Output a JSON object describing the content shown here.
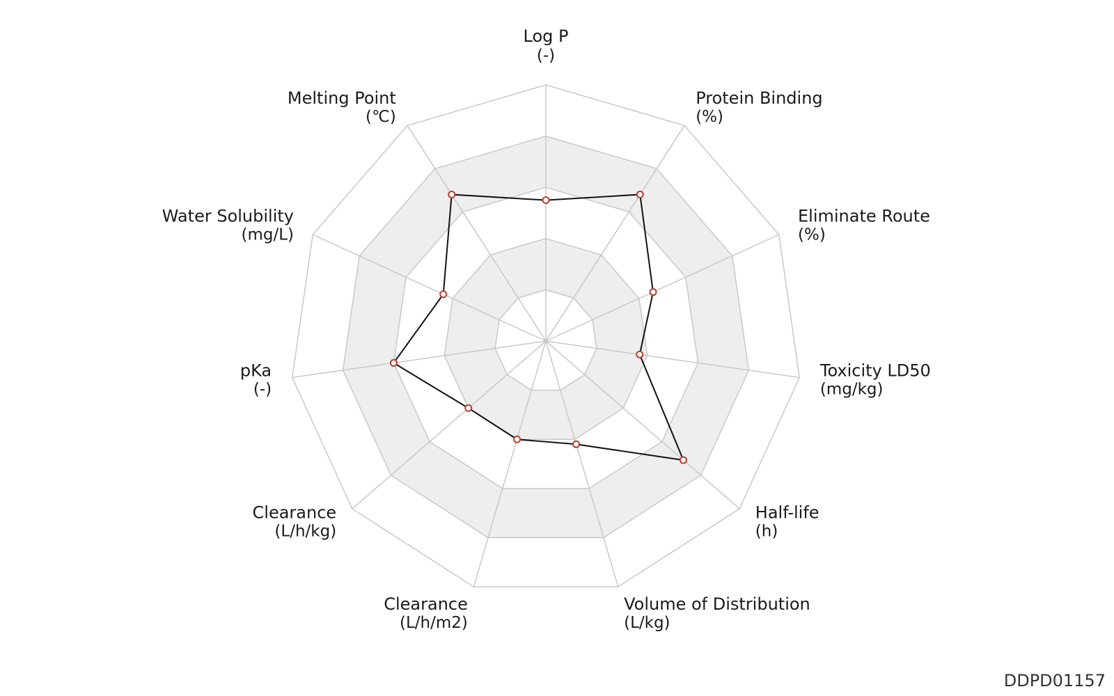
{
  "chart_data": {
    "type": "radar",
    "axes": [
      {
        "label": "Log P",
        "unit": "(-)"
      },
      {
        "label": "Protein Binding",
        "unit": "(%)"
      },
      {
        "label": "Eliminate Route",
        "unit": "(%)"
      },
      {
        "label": "Toxicity LD50",
        "unit": "(mg/kg)"
      },
      {
        "label": "Half-life",
        "unit": "(h)"
      },
      {
        "label": "Volume of Distribution",
        "unit": "(L/kg)"
      },
      {
        "label": "Clearance",
        "unit": "(L/h/m2)"
      },
      {
        "label": "Clearance",
        "unit": "(L/h/kg)"
      },
      {
        "label": "pKa",
        "unit": "(-)"
      },
      {
        "label": "Water Solubility",
        "unit": "(mg/L)"
      },
      {
        "label": "Melting Point",
        "unit": "(℃)"
      }
    ],
    "series": [
      {
        "values": [
          0.55,
          0.68,
          0.46,
          0.37,
          0.71,
          0.42,
          0.4,
          0.4,
          0.6,
          0.44,
          0.68
        ]
      }
    ],
    "range": [
      0,
      1
    ],
    "rings": 5,
    "colors": {
      "band": "#eeeeee",
      "grid": "#c8c8c8",
      "line": "#111111",
      "marker_stroke": "#c0392b",
      "marker_fill": "#ffffff"
    }
  },
  "footer": {
    "id": "DDPD01157"
  }
}
